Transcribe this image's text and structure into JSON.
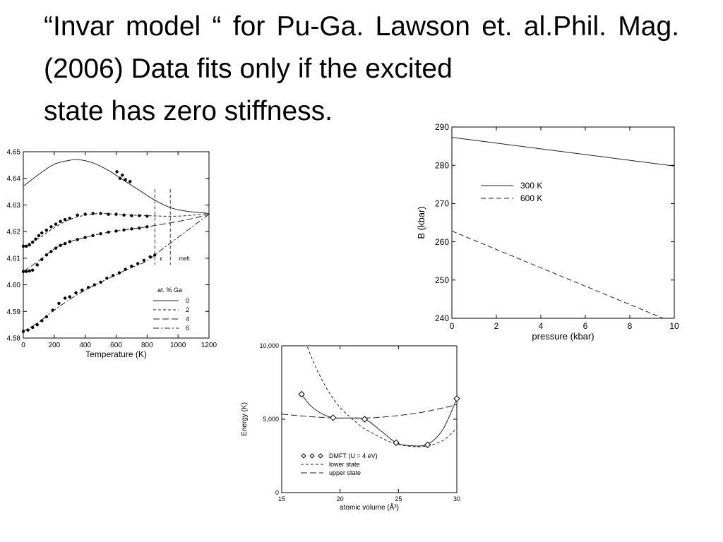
{
  "slide": {
    "title_line1": "“Invar model “ for Pu-Ga. Lawson et. al.Phil. Mag.  (2006) Data fits only if the excited",
    "title_line2": "state has zero stiffness."
  },
  "chart_data": [
    {
      "id": "lattice",
      "type": "line",
      "title": "",
      "xlabel": "Temperature (K)",
      "ylabel": "",
      "xlim": [
        0,
        1200
      ],
      "ylim": [
        4.58,
        4.65
      ],
      "xticks": [
        "0",
        "200",
        "400",
        "600",
        "800",
        "1000",
        "1200"
      ],
      "yticks": [
        "4.58",
        "4.59",
        "4.60",
        "4.61",
        "4.62",
        "4.63",
        "4.64",
        "4.65"
      ],
      "legend_title": "at. % Ga",
      "legend_position": "bottom-right",
      "annotations": [
        "ε",
        "melt"
      ],
      "grid": false,
      "series": [
        {
          "name": "0",
          "style": "solid",
          "x": [
            0,
            100,
            200,
            300,
            360,
            450,
            550,
            650,
            750,
            850,
            950,
            1050,
            1150,
            1200
          ],
          "y": [
            4.637,
            4.6415,
            4.6453,
            4.6468,
            4.647,
            4.6458,
            4.643,
            4.6392,
            4.6355,
            4.6318,
            4.629,
            4.6277,
            4.6271,
            4.6268
          ],
          "points_x": [
            605,
            625,
            640,
            660,
            690
          ],
          "points_y": [
            4.6425,
            4.64,
            4.6412,
            4.6395,
            4.6388
          ]
        },
        {
          "name": "2",
          "style": "short-dash",
          "x": [
            0,
            100,
            200,
            300,
            400,
            500,
            600,
            700,
            800,
            900,
            1000,
            1100,
            1200
          ],
          "y": [
            4.6145,
            4.6175,
            4.6215,
            4.6245,
            4.6262,
            4.6268,
            4.6265,
            4.6262,
            4.626,
            4.6258,
            4.6258,
            4.6262,
            4.6268
          ],
          "points_x": [
            0,
            20,
            40,
            60,
            80,
            100,
            120,
            150,
            180,
            210,
            240,
            270,
            300,
            350,
            400,
            450,
            500,
            550,
            600,
            650,
            700,
            750,
            800
          ],
          "points_y": [
            4.6145,
            4.6145,
            4.615,
            4.616,
            4.6172,
            4.6185,
            4.6195,
            4.6205,
            4.6218,
            4.6228,
            4.6238,
            4.6245,
            4.625,
            4.6262,
            4.6265,
            4.6268,
            4.6268,
            4.6265,
            4.6265,
            4.6262,
            4.626,
            4.626,
            4.6258
          ]
        },
        {
          "name": "4",
          "style": "long-dash",
          "x": [
            0,
            100,
            200,
            300,
            400,
            500,
            600,
            700,
            800,
            900,
            1000,
            1100,
            1200
          ],
          "y": [
            4.605,
            4.609,
            4.6135,
            4.6162,
            4.6178,
            4.6192,
            4.6202,
            4.621,
            4.6218,
            4.6228,
            4.6238,
            4.625,
            4.6265
          ],
          "points_x": [
            0,
            20,
            40,
            60,
            90,
            120,
            150,
            180,
            210,
            240,
            270,
            300,
            350,
            400,
            450,
            500,
            550,
            600,
            650,
            700,
            750,
            800
          ],
          "points_y": [
            4.605,
            4.605,
            4.6052,
            4.6055,
            4.6075,
            4.6095,
            4.6112,
            4.6125,
            4.6138,
            4.6148,
            4.6155,
            4.6162,
            4.617,
            4.6178,
            4.6185,
            4.6192,
            4.6198,
            4.6202,
            4.6206,
            4.621,
            4.6213,
            4.6218
          ]
        },
        {
          "name": "6",
          "style": "dash-dot",
          "x": [
            0,
            100,
            200,
            300,
            400,
            500,
            600,
            700,
            800,
            900,
            1000,
            1100,
            1200
          ],
          "y": [
            4.5825,
            4.586,
            4.5905,
            4.5945,
            4.598,
            4.601,
            4.6038,
            4.6065,
            4.609,
            4.6135,
            4.6178,
            4.6222,
            4.6265
          ],
          "points_x": [
            0,
            30,
            60,
            90,
            120,
            150,
            190,
            230,
            270,
            300,
            340,
            380,
            420,
            460,
            500,
            540,
            580,
            620,
            660,
            700,
            740,
            780,
            820,
            850
          ],
          "points_y": [
            4.5825,
            4.583,
            4.584,
            4.585,
            4.5865,
            4.588,
            4.5905,
            4.593,
            4.595,
            4.5955,
            4.597,
            4.598,
            4.599,
            4.6,
            4.601,
            4.6025,
            4.6035,
            4.6045,
            4.6058,
            4.607,
            4.608,
            4.6092,
            4.6105,
            4.6112
          ]
        }
      ]
    },
    {
      "id": "bulk-modulus",
      "type": "line",
      "title": "",
      "xlabel": "pressure (kbar)",
      "ylabel": "B (kbar)",
      "xlim": [
        0,
        10
      ],
      "ylim": [
        240,
        290
      ],
      "xticks": [
        "0",
        "2",
        "4",
        "6",
        "8",
        "10"
      ],
      "yticks": [
        "240",
        "250",
        "260",
        "270",
        "280",
        "290"
      ],
      "legend_position": "upper-left",
      "grid": false,
      "series": [
        {
          "name": "300 K",
          "style": "solid",
          "x": [
            0,
            10
          ],
          "y": [
            287.3,
            279.8
          ]
        },
        {
          "name": "600 K",
          "style": "dashed",
          "x": [
            0,
            9.5
          ],
          "y": [
            262.8,
            240
          ]
        }
      ]
    },
    {
      "id": "energy",
      "type": "line",
      "title": "",
      "xlabel": "atomic volume (Å³)",
      "ylabel": "Energy (K)",
      "xlim": [
        15,
        30
      ],
      "ylim": [
        0,
        10000
      ],
      "xticks": [
        "15",
        "20",
        "25",
        "30"
      ],
      "yticks": [
        "0",
        "5,000",
        "10,000"
      ],
      "legend_position": "lower-left",
      "grid": false,
      "series": [
        {
          "name": "DMFT (U = 4 eV)",
          "style": "markers+solid",
          "x": [
            16.7,
            19.4,
            22.1,
            24.8,
            27.5,
            30
          ],
          "y": [
            6700,
            5100,
            5000,
            3400,
            3250,
            6400
          ],
          "curve_x": [
            16.7,
            17.5,
            18.5,
            19.4,
            20.5,
            22.1,
            23.5,
            24.8,
            26,
            27.5,
            28.8,
            30
          ],
          "curve_y": [
            6700,
            5900,
            5350,
            5100,
            5080,
            5000,
            4200,
            3400,
            3200,
            3300,
            4300,
            6400
          ]
        },
        {
          "name": "lower state",
          "style": "short-dash",
          "x": [
            17.2,
            18,
            19,
            20,
            21,
            22,
            23,
            24,
            25,
            26,
            27,
            28,
            29,
            30
          ],
          "y": [
            9900,
            8400,
            6900,
            5800,
            5050,
            4400,
            3950,
            3550,
            3280,
            3150,
            3130,
            3280,
            3650,
            4400
          ]
        },
        {
          "name": "upper state",
          "style": "long-dash",
          "x": [
            15,
            17,
            19,
            21,
            23,
            25,
            27,
            29,
            30
          ],
          "y": [
            5350,
            5200,
            5100,
            5070,
            5110,
            5250,
            5470,
            5800,
            6000
          ]
        }
      ]
    }
  ]
}
